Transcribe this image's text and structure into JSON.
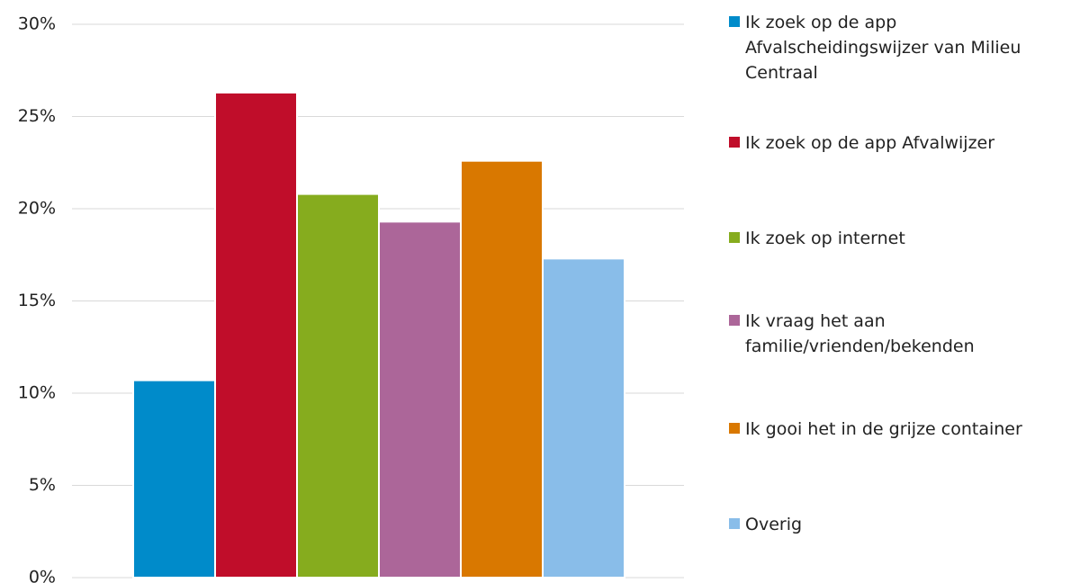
{
  "chart_data": {
    "type": "bar",
    "categories": [
      null
    ],
    "series": [
      {
        "name": "Ik zoek op de app Afvalscheidingswijzer van Milieu Centraal",
        "color": "#008bca",
        "values": [
          10.7
        ]
      },
      {
        "name": "Ik zoek op de app Afvalwijzer",
        "color": "#c00d2a",
        "values": [
          26.3
        ]
      },
      {
        "name": "Ik zoek op internet",
        "color": "#86ac1e",
        "values": [
          20.8
        ]
      },
      {
        "name": "Ik vraag het aan familie/vrienden/bekenden",
        "color": "#ac6699",
        "values": [
          19.3
        ]
      },
      {
        "name": "Ik gooi het in de grijze container",
        "color": "#d97800",
        "values": [
          22.6
        ]
      },
      {
        "name": "Overig",
        "color": "#89bde9",
        "values": [
          17.3
        ]
      }
    ],
    "ylim": [
      0,
      30
    ],
    "yticks": [
      {
        "value": 0,
        "label": "0%"
      },
      {
        "value": 5,
        "label": "5%"
      },
      {
        "value": 10,
        "label": "10%"
      },
      {
        "value": 15,
        "label": "15%"
      },
      {
        "value": 20,
        "label": "20%"
      },
      {
        "value": 25,
        "label": "25%"
      },
      {
        "value": 30,
        "label": "30%"
      }
    ],
    "grid": true,
    "legend": "right"
  }
}
